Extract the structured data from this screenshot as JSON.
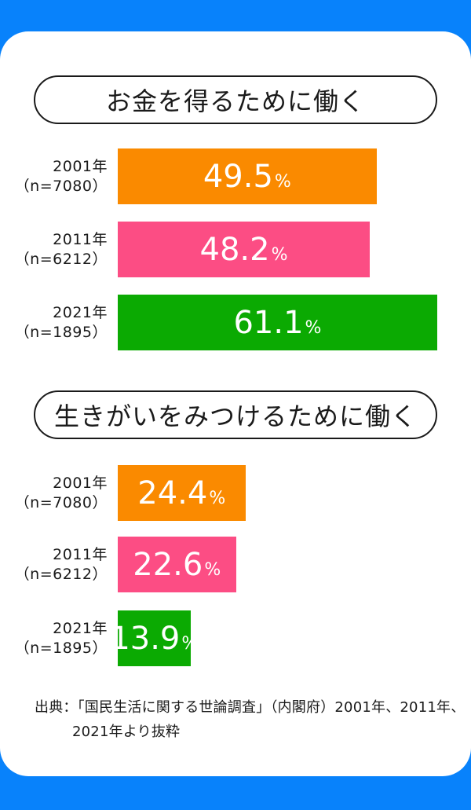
{
  "theme": {
    "background_blue": "#0882fb",
    "card_white": "#ffffff",
    "text_black": "#1a1a1a",
    "bar_value_text": "#ffffff",
    "bar_orange": "#fa8a00",
    "bar_pink": "#fc4d84",
    "bar_green": "#0baa02"
  },
  "percent_sign": "%",
  "charts": [
    {
      "title": "お金を得るために働く",
      "bars": [
        {
          "year": "2001年",
          "n": "（n=7080）",
          "value": 49.5,
          "color": "#fa8a00"
        },
        {
          "year": "2011年",
          "n": "（n=6212）",
          "value": 48.2,
          "color": "#fc4d84"
        },
        {
          "year": "2021年",
          "n": "（n=1895）",
          "value": 61.1,
          "color": "#0baa02"
        }
      ]
    },
    {
      "title": "生きがいをみつけるために働く",
      "bars": [
        {
          "year": "2001年",
          "n": "（n=7080）",
          "value": 24.4,
          "color": "#fa8a00"
        },
        {
          "year": "2011年",
          "n": "（n=6212）",
          "value": 22.6,
          "color": "#fc4d84"
        },
        {
          "year": "2021年",
          "n": "（n=1895）",
          "value": 13.9,
          "color": "#0baa02"
        }
      ]
    }
  ],
  "source": {
    "line1": "出典：「国民生活に関する世論調査」（内閣府）2001年、2011年、",
    "line2": "2021年より抜粋"
  },
  "chart_data": [
    {
      "type": "bar",
      "orientation": "horizontal",
      "title": "お金を得るために働く",
      "categories": [
        "2001年（n=7080）",
        "2011年（n=6212）",
        "2021年（n=1895）"
      ],
      "values": [
        49.5,
        48.2,
        61.1
      ],
      "unit": "%",
      "value_labels": "inside-center",
      "colors": [
        "#fa8a00",
        "#fc4d84",
        "#0baa02"
      ],
      "xlim": [
        0,
        67
      ],
      "grid": false,
      "legend": false
    },
    {
      "type": "bar",
      "orientation": "horizontal",
      "title": "生きがいをみつけるために働く",
      "categories": [
        "2001年（n=7080）",
        "2011年（n=6212）",
        "2021年（n=1895）"
      ],
      "values": [
        24.4,
        22.6,
        13.9
      ],
      "unit": "%",
      "value_labels": "inside-center",
      "colors": [
        "#fa8a00",
        "#fc4d84",
        "#0baa02"
      ],
      "xlim": [
        0,
        67
      ],
      "grid": false,
      "legend": false
    }
  ]
}
